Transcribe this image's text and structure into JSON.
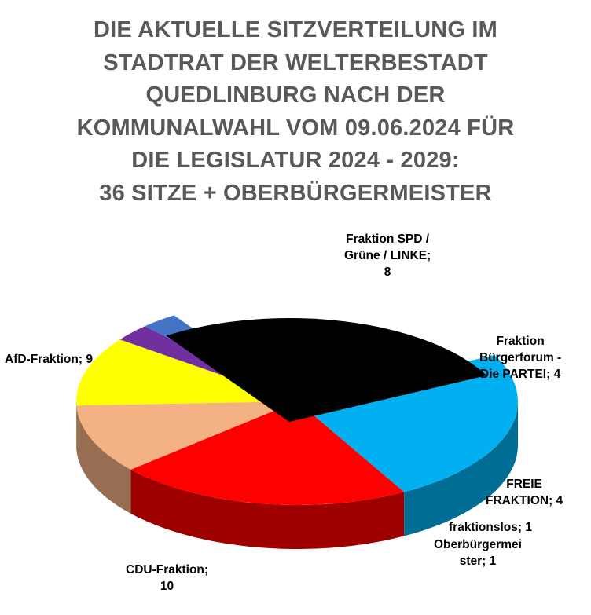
{
  "title_lines": [
    "DIE AKTUELLE SITZVERTEILUNG IM",
    "STADTRAT DER WELTERBESTADT",
    "QUEDLINBURG NACH DER",
    "KOMMUNALWAHL VOM 09.06.2024 FÜR",
    "DIE LEGISLATUR 2024 - 2029:",
    "36 SITZE + OBERBÜRGERMEISTER"
  ],
  "chart_data": {
    "type": "pie",
    "style": "3d-exploded",
    "legend": "none",
    "slices": [
      {
        "label": "Fraktion SPD / Grüne / LINKE",
        "value": 8,
        "color": "#FF0000"
      },
      {
        "label": "Fraktion Bürgerforum - Die PARTEI",
        "value": 4,
        "color": "#F4B183"
      },
      {
        "label": "FREIE FRAKTION",
        "value": 4,
        "color": "#FFFF00"
      },
      {
        "label": "fraktionslos",
        "value": 1,
        "color": "#7030A0"
      },
      {
        "label": "Oberbürgermeister",
        "value": 1,
        "color": "#4472C4"
      },
      {
        "label": "CDU-Fraktion",
        "value": 10,
        "color": "#000000"
      },
      {
        "label": "AfD-Fraktion",
        "value": 9,
        "color": "#00B0F0"
      }
    ],
    "data_labels": [
      [
        "Fraktion SPD /",
        "Grüne / LINKE;",
        "8"
      ],
      [
        "Fraktion",
        "Bürgerforum -",
        "Die PARTEI; 4"
      ],
      [
        "FREIE",
        "FRAKTION; 4"
      ],
      [
        "fraktionslos; 1"
      ],
      [
        "Oberbürgermei",
        "ster; 1"
      ],
      [
        "CDU-Fraktion;",
        "10"
      ],
      [
        "AfD-Fraktion; 9"
      ]
    ]
  }
}
